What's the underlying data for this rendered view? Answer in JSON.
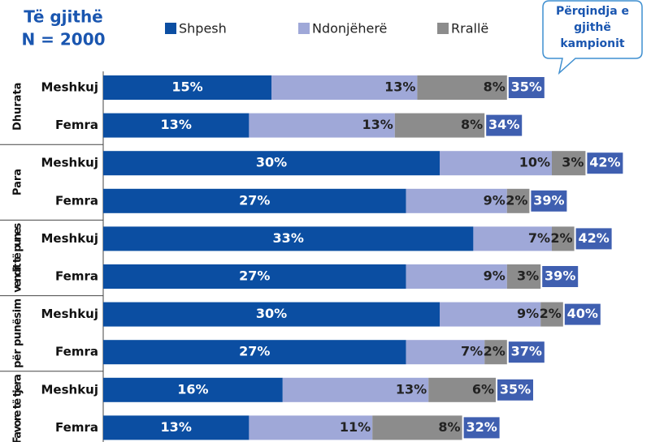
{
  "chart_data": {
    "type": "stacked_hbar",
    "title": "Të gjithë",
    "subtitle": "N = 2000",
    "callout": [
      "Përqindja e",
      "gjithë",
      "kampionit"
    ],
    "groups": [
      "Dhurata",
      "Para",
      "vendit të punes",
      "për punësim",
      "Favore të tjera"
    ],
    "categories": [
      "Meshkuj",
      "Femra",
      "Meshkuj",
      "Femra",
      "Meshkuj",
      "Femra",
      "Meshkuj",
      "Femra",
      "Meshkuj",
      "Femra"
    ],
    "series": [
      {
        "name": "Shpesh",
        "color": "#0b4ea2",
        "values": [
          15,
          13,
          30,
          27,
          33,
          27,
          30,
          27,
          16,
          13
        ],
        "value_labels": [
          "15%",
          "13%",
          "30%",
          "27%",
          "33%",
          "27%",
          "30%",
          "27%",
          "16%",
          "13%"
        ]
      },
      {
        "name": "Ndonjëherë",
        "color": "#9fa8d8",
        "values": [
          13,
          13,
          10,
          9,
          7,
          9,
          9,
          7,
          13,
          11
        ],
        "value_labels": [
          "13%",
          "13%",
          "10%",
          "9%",
          "7%",
          "9%",
          "9%",
          "7%",
          "13%",
          "11%"
        ]
      },
      {
        "name": "Rrallë",
        "color": "#8c8c8c",
        "values": [
          8,
          8,
          3,
          2,
          2,
          3,
          2,
          2,
          6,
          8
        ],
        "value_labels": [
          "8%",
          "8%",
          "3%",
          "2%",
          "2%",
          "3%",
          "2%",
          "2%",
          "6%",
          "8%"
        ]
      }
    ],
    "totals": {
      "color": "#3f5fb0",
      "values": [
        35,
        34,
        42,
        39,
        42,
        39,
        40,
        37,
        35,
        32
      ],
      "value_labels": [
        "35%",
        "34%",
        "42%",
        "39%",
        "42%",
        "39%",
        "40%",
        "37%",
        "35%",
        "32%"
      ]
    }
  }
}
